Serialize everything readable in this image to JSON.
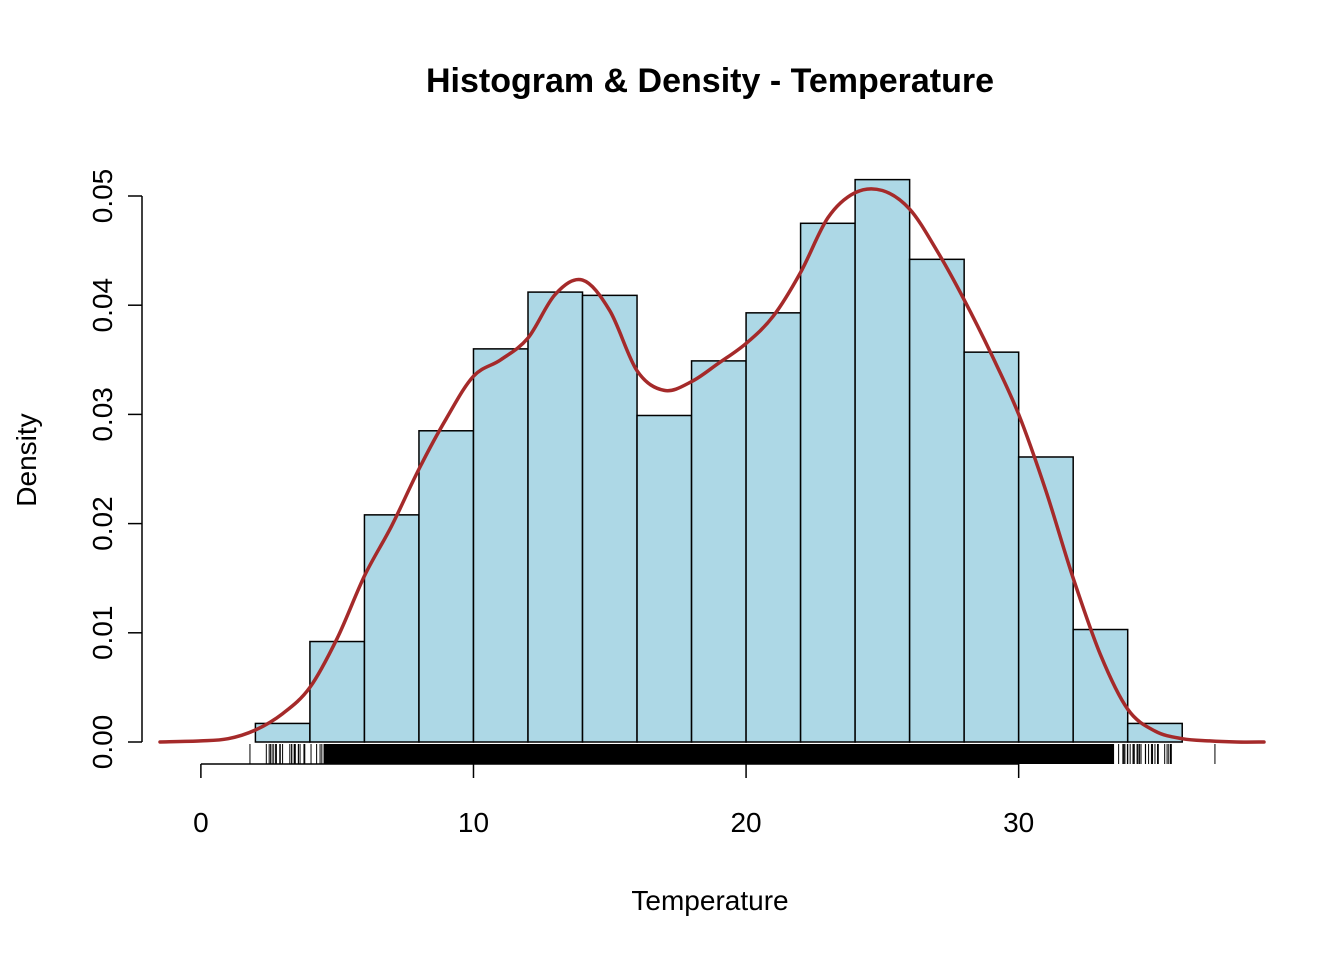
{
  "chart_data": {
    "type": "bar",
    "title": "Histogram & Density - Temperature",
    "xlabel": "Temperature",
    "ylabel": "Density",
    "xlim": [
      -1.5,
      39
    ],
    "ylim": [
      0,
      0.052
    ],
    "x_ticks": [
      0,
      10,
      20,
      30
    ],
    "y_ticks": [
      "0.00",
      "0.01",
      "0.02",
      "0.03",
      "0.04",
      "0.05"
    ],
    "grid": false,
    "bins": [
      {
        "start": 2,
        "end": 4,
        "density": 0.0017
      },
      {
        "start": 4,
        "end": 6,
        "density": 0.0092
      },
      {
        "start": 6,
        "end": 8,
        "density": 0.0208
      },
      {
        "start": 8,
        "end": 10,
        "density": 0.0285
      },
      {
        "start": 10,
        "end": 12,
        "density": 0.036
      },
      {
        "start": 12,
        "end": 14,
        "density": 0.0412
      },
      {
        "start": 14,
        "end": 16,
        "density": 0.0409
      },
      {
        "start": 16,
        "end": 18,
        "density": 0.0299
      },
      {
        "start": 18,
        "end": 20,
        "density": 0.0349
      },
      {
        "start": 20,
        "end": 22,
        "density": 0.0393
      },
      {
        "start": 22,
        "end": 24,
        "density": 0.0475
      },
      {
        "start": 24,
        "end": 26,
        "density": 0.0515
      },
      {
        "start": 26,
        "end": 28,
        "density": 0.0442
      },
      {
        "start": 28,
        "end": 30,
        "density": 0.0357
      },
      {
        "start": 30,
        "end": 32,
        "density": 0.0261
      },
      {
        "start": 32,
        "end": 34,
        "density": 0.0103
      },
      {
        "start": 34,
        "end": 36,
        "density": 0.0017
      }
    ],
    "density_curve": {
      "x": [
        -1.5,
        0,
        1,
        2,
        3,
        4,
        5,
        6,
        7,
        8,
        9,
        10,
        11,
        12,
        13,
        14,
        15,
        16,
        17,
        18,
        19,
        20,
        21,
        22,
        23,
        24,
        25,
        26,
        27,
        28,
        29,
        30,
        31,
        32,
        33,
        34,
        35,
        36,
        37,
        38,
        39
      ],
      "y": [
        0.0,
        0.0001,
        0.0003,
        0.0011,
        0.0026,
        0.005,
        0.0095,
        0.0152,
        0.0198,
        0.025,
        0.0296,
        0.0335,
        0.035,
        0.037,
        0.041,
        0.0423,
        0.0395,
        0.034,
        0.0322,
        0.033,
        0.0347,
        0.0365,
        0.039,
        0.043,
        0.048,
        0.0503,
        0.0505,
        0.0488,
        0.045,
        0.0405,
        0.0355,
        0.03,
        0.023,
        0.015,
        0.008,
        0.003,
        0.001,
        0.0003,
        0.0001,
        0.0,
        0.0
      ]
    },
    "rug": {
      "min": 1.8,
      "max": 37.2,
      "dense_range": [
        4.5,
        33.5
      ],
      "isolated_ticks": [
        1.8,
        2.4,
        35.0,
        35.6,
        37.2
      ]
    },
    "colors": {
      "bar_fill": "#add8e6",
      "bar_stroke": "#000000",
      "density_line": "#a52a2a",
      "axis": "#000000"
    }
  }
}
